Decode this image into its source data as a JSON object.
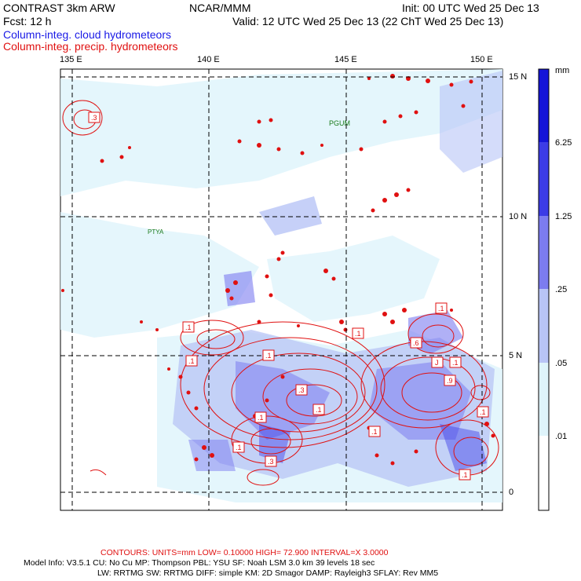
{
  "header": {
    "title_left": "CONTRAST  3km ARW",
    "title_center": "NCAR/MMM",
    "init": "Init: 00 UTC Wed 25 Dec 13",
    "fcst": "Fcst:   12 h",
    "valid": "Valid: 12 UTC Wed 25 Dec 13 (22 ChT Wed 25 Dec 13)",
    "legend_cloud": "Column-integ. cloud hydrometeors",
    "legend_precip": "Column-integ. precip. hydrometeors"
  },
  "map": {
    "lon_labels": [
      "135 E",
      "140 E",
      "145 E",
      "150 E"
    ],
    "lat_labels": [
      "15 N",
      "10 N",
      "5 N",
      "0"
    ],
    "stations": [
      "PGUM",
      "PTYA"
    ],
    "contour_labels": [
      ".3",
      ".1",
      ".1",
      ".1",
      ".1",
      ".1",
      ".1",
      ".1",
      ".3",
      ".1",
      "J",
      ".1",
      ".9",
      ".6",
      ".1",
      ".1",
      ".3",
      ".1"
    ]
  },
  "colorbar": {
    "unit": "mm",
    "labels": [
      "6.25",
      "1.25",
      ".25",
      ".05",
      ".01"
    ],
    "colors": [
      "#1414d8",
      "#3c3ce6",
      "#7c7cf0",
      "#b8c4f6",
      "#dff4fb",
      "#ffffff"
    ]
  },
  "footer": {
    "contours": "CONTOURS:  UNITS=mm  LOW= 0.10000      HIGH=  72.900      INTERVAL=X  3.0000",
    "model_line1": "Model Info: V3.5.1     CU: No Cu      MP: Thompson     PBL: YSU      SF: Noah LSM     3.0 km   39 levels   18 sec",
    "model_line2": "LW: RRTMG    SW: RRTMG   DIFF: simple KM: 2D Smagor DAMP: Rayleigh3   SFLAY: Rev MM5"
  }
}
